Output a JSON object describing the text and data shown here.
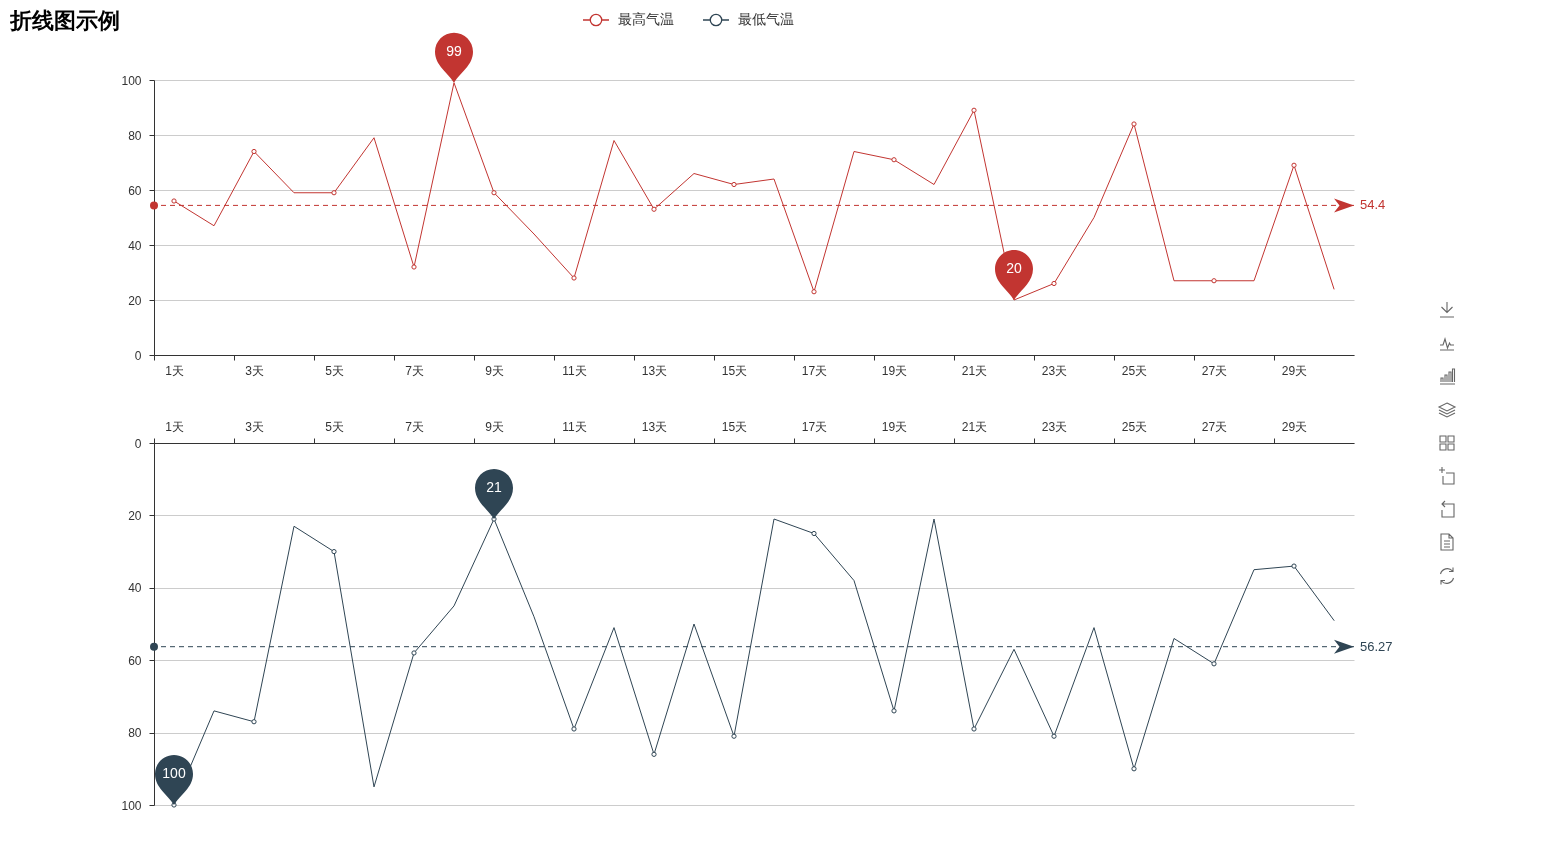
{
  "chart_data": [
    {
      "type": "line",
      "title": "折线图示例",
      "categories": [
        "1天",
        null,
        "3天",
        null,
        "5天",
        null,
        "7天",
        null,
        "9天",
        null,
        "11天",
        null,
        "13天",
        null,
        "15天",
        null,
        "17天",
        null,
        "19天",
        null,
        "21天",
        null,
        "23天",
        null,
        "25天",
        null,
        "27天",
        null,
        "29天",
        null
      ],
      "series": [
        {
          "name": "最高气温",
          "color": "#c23531",
          "values": [
            56,
            47,
            74,
            59,
            59,
            79,
            32,
            99,
            59,
            44,
            28,
            78,
            53,
            66,
            62,
            64,
            23,
            74,
            71,
            62,
            89,
            20,
            26,
            50,
            84,
            27,
            27,
            27,
            69,
            24
          ],
          "value_labels": [
            null,
            null,
            null,
            null,
            null,
            null,
            null,
            "99",
            null,
            null,
            null,
            null,
            null,
            null,
            null,
            null,
            null,
            null,
            null,
            null,
            null,
            "20",
            null,
            null,
            null,
            null,
            null,
            null,
            null,
            null
          ]
        }
      ],
      "ylim": [
        0,
        100
      ],
      "yticks": [
        0,
        20,
        40,
        60,
        80,
        100
      ],
      "grid": "y",
      "legend": "top",
      "marker": "circle",
      "ref_lines": [
        {
          "axis": "y",
          "value": 54.4,
          "label": "54.4",
          "color": "#c23531",
          "line_style": "dashed"
        }
      ]
    },
    {
      "type": "line",
      "categories": [
        "1天",
        null,
        "3天",
        null,
        "5天",
        null,
        "7天",
        null,
        "9天",
        null,
        "11天",
        null,
        "13天",
        null,
        "15天",
        null,
        "17天",
        null,
        "19天",
        null,
        "21天",
        null,
        "23天",
        null,
        "25天",
        null,
        "27天",
        null,
        "29天",
        null
      ],
      "series": [
        {
          "name": "最低气温",
          "color": "#2f4554",
          "values": [
            100,
            74,
            77,
            23,
            30,
            95,
            58,
            45,
            21,
            48,
            79,
            51,
            86,
            50,
            81,
            21,
            25,
            38,
            74,
            21,
            79,
            57,
            81,
            51,
            90,
            54,
            61,
            35,
            34,
            49
          ],
          "value_labels": [
            "100",
            null,
            null,
            null,
            null,
            null,
            null,
            null,
            "21",
            null,
            null,
            null,
            null,
            null,
            null,
            null,
            null,
            null,
            null,
            null,
            null,
            null,
            null,
            null,
            null,
            null,
            null,
            null,
            null,
            null
          ]
        }
      ],
      "ylim": [
        100,
        0
      ],
      "yticks": [
        0,
        20,
        40,
        60,
        80,
        100
      ],
      "grid": "y",
      "legend": "top",
      "marker": "circle",
      "ref_lines": [
        {
          "axis": "y",
          "value": 56.27,
          "label": "56.27",
          "color": "#2f4554",
          "line_style": "dashed"
        }
      ]
    }
  ]
}
